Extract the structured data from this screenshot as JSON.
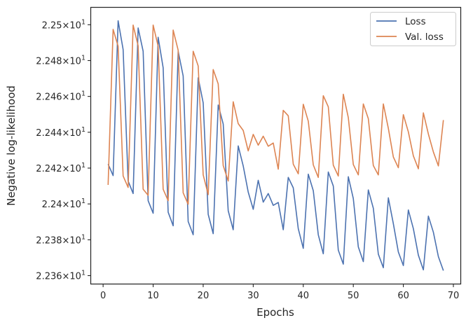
{
  "chart_data": {
    "type": "line",
    "xlabel": "Epochs",
    "ylabel": "Negative log-likelihood",
    "xlim": [
      -2.4,
      71.4
    ],
    "ylim": [
      22.3555,
      22.5095
    ],
    "grid": false,
    "legend_position": "top-right",
    "x_ticks": [
      {
        "value": 0,
        "label": "0"
      },
      {
        "value": 10,
        "label": "10"
      },
      {
        "value": 20,
        "label": "20"
      },
      {
        "value": 30,
        "label": "30"
      },
      {
        "value": 40,
        "label": "40"
      },
      {
        "value": 50,
        "label": "50"
      },
      {
        "value": 60,
        "label": "60"
      },
      {
        "value": 70,
        "label": "70"
      }
    ],
    "y_ticks": [
      {
        "value": 22.36,
        "mantissa": "2.236",
        "exponent": "1"
      },
      {
        "value": 22.38,
        "mantissa": "2.238",
        "exponent": "1"
      },
      {
        "value": 22.4,
        "mantissa": "2.24",
        "exponent": "1"
      },
      {
        "value": 22.42,
        "mantissa": "2.242",
        "exponent": "1"
      },
      {
        "value": 22.44,
        "mantissa": "2.244",
        "exponent": "1"
      },
      {
        "value": 22.46,
        "mantissa": "2.246",
        "exponent": "1"
      },
      {
        "value": 22.48,
        "mantissa": "2.248",
        "exponent": "1"
      },
      {
        "value": 22.5,
        "mantissa": "2.25",
        "exponent": "1"
      }
    ],
    "tick_times": "×",
    "tick_base": "10",
    "x": [
      1,
      2,
      3,
      4,
      5,
      6,
      7,
      8,
      9,
      10,
      11,
      12,
      13,
      14,
      15,
      16,
      17,
      18,
      19,
      20,
      21,
      22,
      23,
      24,
      25,
      26,
      27,
      28,
      29,
      30,
      31,
      32,
      33,
      34,
      35,
      36,
      37,
      38,
      39,
      40,
      41,
      42,
      43,
      44,
      45,
      46,
      47,
      48,
      49,
      50,
      51,
      52,
      53,
      54,
      55,
      56,
      57,
      58,
      59,
      60,
      61,
      62,
      63,
      64,
      65,
      66,
      67,
      68
    ],
    "series": [
      {
        "name": "Loss",
        "color": "#4c72b0",
        "values": [
          22.4222,
          22.4158,
          22.5022,
          22.4862,
          22.4128,
          22.4058,
          22.4982,
          22.4852,
          22.4018,
          22.3948,
          22.493,
          22.476,
          22.3954,
          22.3878,
          22.4852,
          22.4714,
          22.3902,
          22.3828,
          22.4704,
          22.4564,
          22.3942,
          22.3834,
          22.4552,
          22.4446,
          22.3962,
          22.3856,
          22.4324,
          22.4212,
          22.4066,
          22.397,
          22.4132,
          22.401,
          22.4058,
          22.3992,
          22.4008,
          22.3856,
          22.4148,
          22.409,
          22.3862,
          22.3752,
          22.4166,
          22.4074,
          22.3828,
          22.3722,
          22.4178,
          22.41,
          22.3742,
          22.3664,
          22.4152,
          22.403,
          22.376,
          22.3678,
          22.4078,
          22.3976,
          22.372,
          22.3644,
          22.4034,
          22.389,
          22.3732,
          22.3656,
          22.3966,
          22.3862,
          22.3714,
          22.3632,
          22.3932,
          22.3842,
          22.3706,
          22.3628
        ]
      },
      {
        "name": "Val. loss",
        "color": "#dd8452",
        "values": [
          22.4106,
          22.4974,
          22.488,
          22.4156,
          22.4092,
          22.4998,
          22.4882,
          22.4082,
          22.4048,
          22.4998,
          22.488,
          22.4082,
          22.4018,
          22.497,
          22.4858,
          22.4062,
          22.3998,
          22.4852,
          22.477,
          22.4162,
          22.4052,
          22.475,
          22.467,
          22.4214,
          22.4128,
          22.457,
          22.4448,
          22.441,
          22.4296,
          22.4388,
          22.4328,
          22.4378,
          22.4322,
          22.434,
          22.4194,
          22.4522,
          22.4492,
          22.4222,
          22.4168,
          22.4556,
          22.4462,
          22.4218,
          22.4148,
          22.4604,
          22.4542,
          22.4216,
          22.4156,
          22.4612,
          22.4482,
          22.422,
          22.4162,
          22.4558,
          22.4476,
          22.4214,
          22.4162,
          22.4558,
          22.4422,
          22.4262,
          22.4202,
          22.4498,
          22.4402,
          22.4268,
          22.4196,
          22.4508,
          22.439,
          22.429,
          22.4212,
          22.4468
        ]
      }
    ]
  }
}
